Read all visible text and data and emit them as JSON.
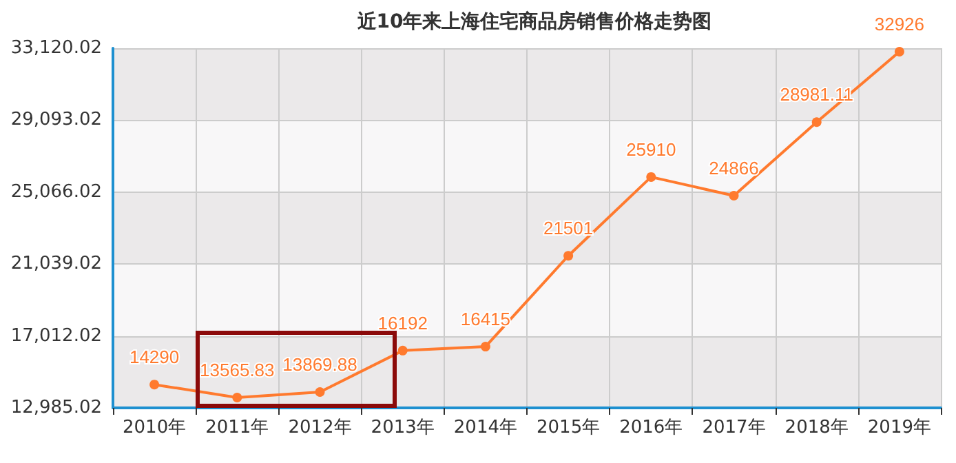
{
  "chart_data": {
    "type": "line",
    "title": "近10年来上海住宅商品房销售价格走势图",
    "categories": [
      "2010年",
      "2011年",
      "2012年",
      "2013年",
      "2014年",
      "2015年",
      "2016年",
      "2017年",
      "2018年",
      "2019年"
    ],
    "series": [
      {
        "color": "#ff7a2e",
        "values": [
          14290,
          13565.83,
          13869.88,
          16192,
          16415,
          21501,
          25910,
          24866,
          28981.11,
          32926
        ]
      }
    ],
    "ylim": [
      12985.02,
      33120.02
    ],
    "yticks": [
      {
        "value": 12985.02,
        "label": "12,985.02"
      },
      {
        "value": 17012.02,
        "label": "17,012.02"
      },
      {
        "value": 21039.02,
        "label": "21,039.02"
      },
      {
        "value": 25066.02,
        "label": "25,066.02"
      },
      {
        "value": 29093.02,
        "label": "29,093.02"
      },
      {
        "value": 33120.02,
        "label": "33,120.02"
      }
    ],
    "grid": true,
    "marker": "circle",
    "line_style": "solid",
    "data_labels": true
  }
}
